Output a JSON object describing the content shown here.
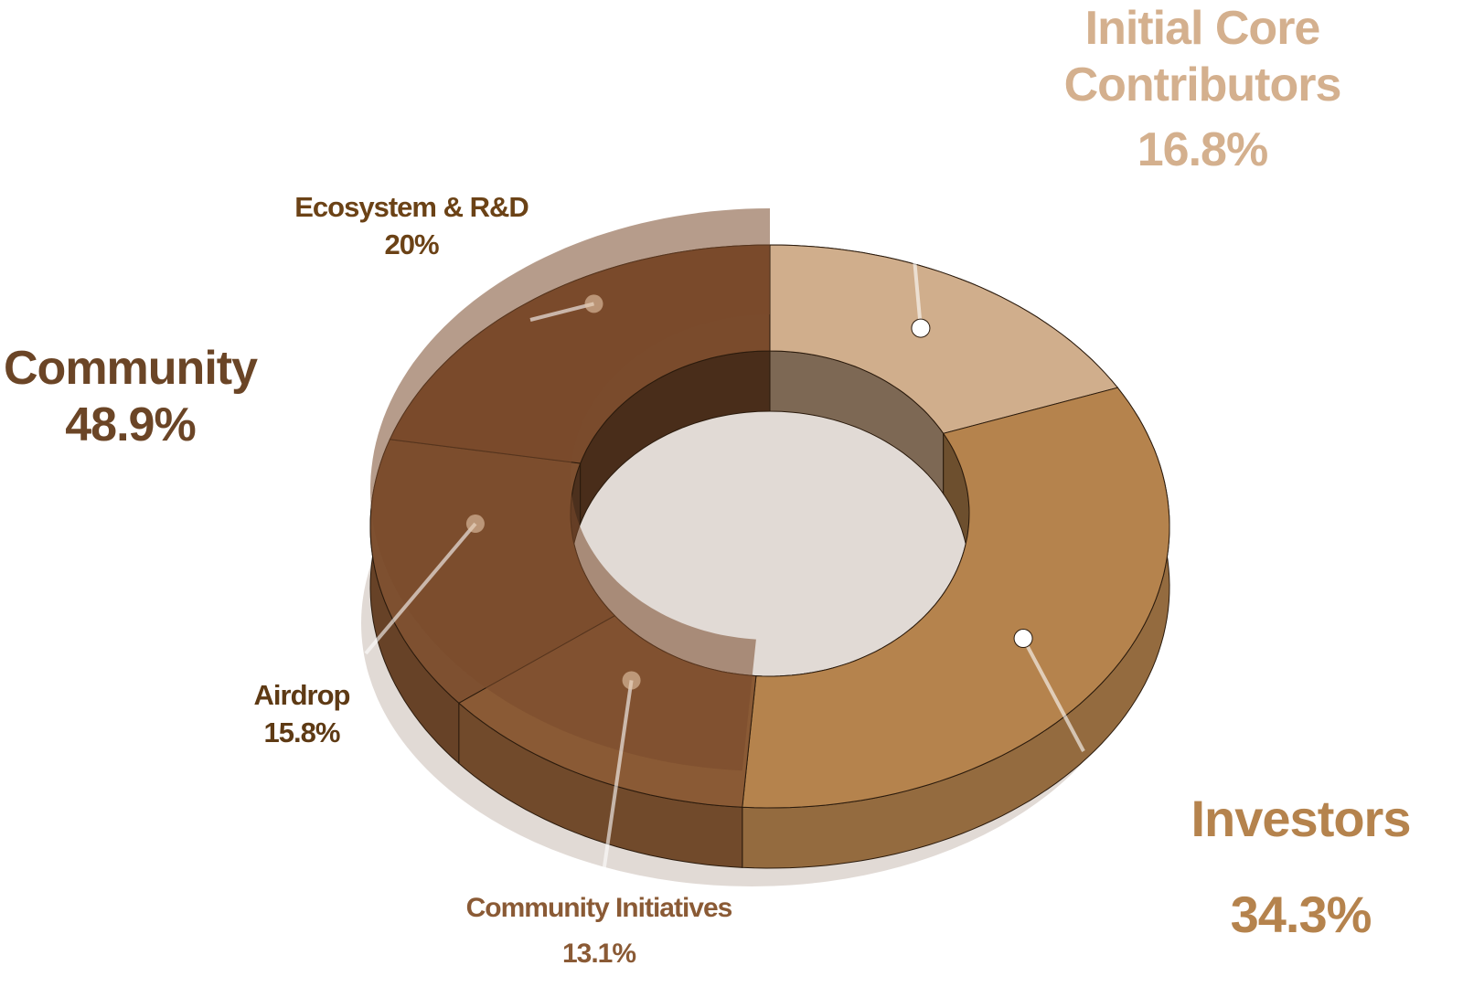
{
  "chart_data": {
    "type": "donut",
    "segments": [
      {
        "name": "Initial Core Contributors",
        "value": 16.8,
        "value_label": "16.8%",
        "color": "#d0ae8c"
      },
      {
        "name": "Investors",
        "value": 34.3,
        "value_label": "34.3%",
        "color": "#b5834d"
      },
      {
        "name": "Community",
        "value": 48.9,
        "value_label": "48.9%",
        "color": "#7a4b2c",
        "children": [
          {
            "name": "Community Initiatives",
            "value": 13.1,
            "value_label": "13.1%",
            "color": "#8a5a35"
          },
          {
            "name": "Airdrop",
            "value": 15.8,
            "value_label": "15.8%",
            "color": "#7e5030"
          },
          {
            "name": "Ecosystem & R&D",
            "value": 20,
            "value_label": "20%",
            "color": "#7a4b2c"
          }
        ]
      }
    ]
  }
}
